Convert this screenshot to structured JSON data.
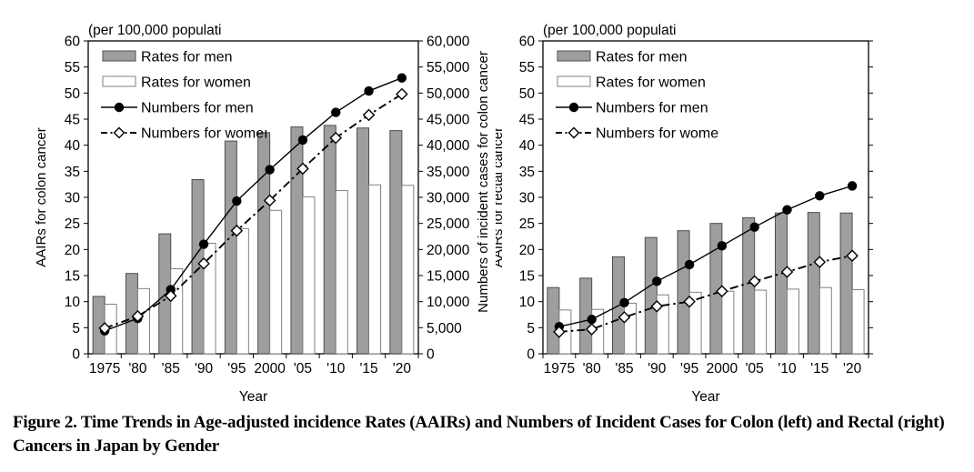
{
  "figure": {
    "caption": "Figure 2. Time Trends in Age-adjusted incidence Rates (AAIRs) and Numbers of Incident Cases for Colon (left) and Rectal (right) Cancers in Japan by Gender"
  },
  "colors": {
    "bar_men_fill": "#9e9e9e",
    "bar_men_stroke": "#4d4d4d",
    "bar_women_fill": "#ffffff",
    "bar_women_stroke": "#808080",
    "line": "#000000",
    "axis": "#000000",
    "background": "#ffffff"
  },
  "chart_data": [
    {
      "type": "bar",
      "name": "colon-cancer-chart",
      "title": "(per 100,000 populati",
      "xlabel": "Year",
      "ylabel_left": "AAIRs for colon cancer",
      "ylabel_right": "Numbers of incident cases for colon cancer",
      "y_left": {
        "min": 0,
        "max": 60,
        "step": 5
      },
      "y_right": {
        "min": 0,
        "max": 60000,
        "step": 5000,
        "labels": true
      },
      "grid": false,
      "legend_position": "top-left",
      "categories": [
        "1975",
        "'80",
        "'85",
        "'90",
        "'95",
        "2000",
        "'05",
        "'10",
        "'15",
        "'20"
      ],
      "series": [
        {
          "name": "rates-for-men",
          "label": "Rates for men",
          "type": "bar",
          "style": "gray",
          "axis": "left",
          "values": [
            11.0,
            15.4,
            23.0,
            33.4,
            40.8,
            42.4,
            43.5,
            43.8,
            43.3,
            42.8
          ]
        },
        {
          "name": "rates-for-women",
          "label": "Rates for women",
          "type": "bar",
          "style": "white",
          "axis": "left",
          "values": [
            9.5,
            12.5,
            16.3,
            21.2,
            24.0,
            27.5,
            30.1,
            31.3,
            32.4,
            32.3
          ]
        },
        {
          "name": "numbers-for-men",
          "label": "Numbers for men",
          "type": "line",
          "style": "solid-dot",
          "axis": "right",
          "values": [
            4400,
            6800,
            12300,
            21000,
            29300,
            35300,
            41000,
            46300,
            50400,
            52900
          ]
        },
        {
          "name": "numbers-for-women",
          "label": "Numbers for womeı",
          "type": "line",
          "style": "dashdot-diamond",
          "axis": "right",
          "values": [
            4900,
            7200,
            11100,
            17300,
            23600,
            29400,
            35500,
            41400,
            45800,
            49800
          ]
        }
      ]
    },
    {
      "type": "bar",
      "name": "rectal-cancer-chart",
      "title": "(per 100,000 populati",
      "xlabel": "Year",
      "ylabel_left": "AAIRs for rectal cancer",
      "ylabel_right": null,
      "y_left": {
        "min": 0,
        "max": 60,
        "step": 5
      },
      "y_right": {
        "min": 0,
        "max": 60,
        "step": 5,
        "labels": false
      },
      "grid": false,
      "legend_position": "top-left",
      "categories": [
        "1975",
        "'80",
        "'85",
        "'90",
        "'95",
        "2000",
        "'05",
        "'10",
        "'15",
        "'20"
      ],
      "series": [
        {
          "name": "rates-for-men",
          "label": "Rates for men",
          "type": "bar",
          "style": "gray",
          "axis": "left",
          "values": [
            12.7,
            14.5,
            18.6,
            22.3,
            23.6,
            25.0,
            26.1,
            27.0,
            27.1,
            27.0
          ]
        },
        {
          "name": "rates-for-women",
          "label": "Rates for women",
          "type": "bar",
          "style": "white",
          "axis": "left",
          "values": [
            8.4,
            8.5,
            9.7,
            11.3,
            11.8,
            12.0,
            12.2,
            12.4,
            12.7,
            12.3
          ]
        },
        {
          "name": "numbers-for-men",
          "label": "Numbers for men",
          "type": "line",
          "style": "solid-dot",
          "axis": "left",
          "values": [
            5.2,
            6.6,
            9.8,
            13.9,
            17.1,
            20.7,
            24.3,
            27.6,
            30.3,
            32.2
          ]
        },
        {
          "name": "numbers-for-women",
          "label": "Numbers for wome",
          "type": "line",
          "style": "dashdot-diamond",
          "axis": "left",
          "values": [
            4.2,
            4.7,
            7.0,
            9.1,
            10.0,
            12.0,
            13.9,
            15.7,
            17.6,
            18.8
          ]
        }
      ]
    }
  ]
}
